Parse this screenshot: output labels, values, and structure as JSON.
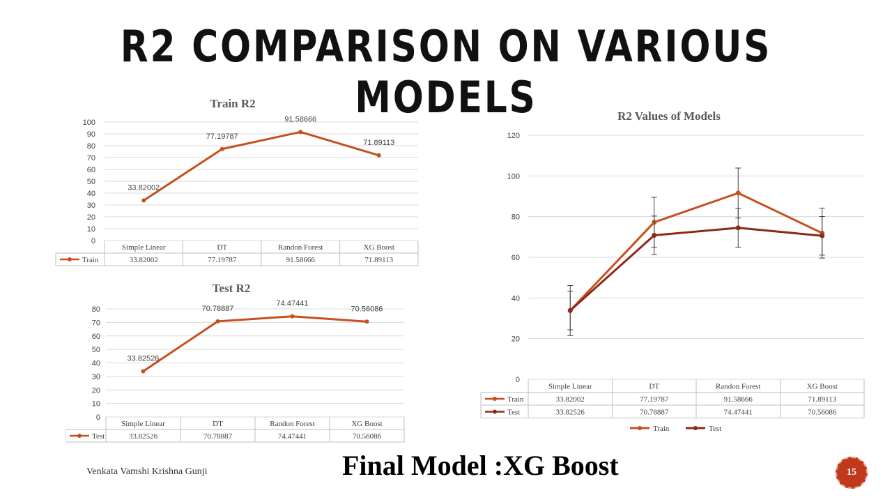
{
  "slide": {
    "title": "R2 COMPARISON ON VARIOUS MODELS",
    "author": "Venkata Vamshi Krishna Gunji",
    "final_model": "Final Model :XG Boost",
    "page_number": "15",
    "accent_color": "#c0391b"
  },
  "chart_data": [
    {
      "type": "line",
      "title": "Train R2",
      "categories": [
        "Simple Linear",
        "DT",
        "Randon Forest",
        "XG Boost"
      ],
      "series": [
        {
          "name": "Train",
          "values": [
            33.82002,
            77.19787,
            91.58666,
            71.89113
          ],
          "color": "#c5501e",
          "data_labels": [
            "33.82002",
            "77.19787",
            "91.58666",
            "71.89113"
          ]
        }
      ],
      "ylim": [
        0,
        100
      ],
      "yticks": [
        0,
        10,
        20,
        30,
        40,
        50,
        60,
        70,
        80,
        90,
        100
      ],
      "grid": true,
      "data_table": true
    },
    {
      "type": "line",
      "title": "Test R2",
      "categories": [
        "Simple Linear",
        "DT",
        "Randon Forest",
        "XG Boost"
      ],
      "series": [
        {
          "name": "Test",
          "values": [
            33.82526,
            70.78887,
            74.47441,
            70.56086
          ],
          "color": "#c5501e",
          "data_labels": [
            "33.82526",
            "70.78887",
            "74.47441",
            "70.56086"
          ]
        }
      ],
      "ylim": [
        0,
        80
      ],
      "yticks": [
        0,
        10,
        20,
        30,
        40,
        50,
        60,
        70,
        80
      ],
      "grid": true,
      "data_table": true
    },
    {
      "type": "line",
      "title": "R2 Values of Models",
      "categories": [
        "Simple Linear",
        "DT",
        "Randon Forest",
        "XG Boost"
      ],
      "series": [
        {
          "name": "Train",
          "values": [
            33.82002,
            77.19787,
            91.58666,
            71.89113
          ],
          "color": "#c5501e",
          "error": [
            12.3,
            12.3,
            12.3,
            12.3
          ]
        },
        {
          "name": "Test",
          "values": [
            33.82526,
            70.78887,
            74.47441,
            70.56086
          ],
          "color": "#8b2a1a",
          "error": [
            9.5,
            9.5,
            9.5,
            9.5
          ]
        }
      ],
      "ylim": [
        0,
        120
      ],
      "yticks": [
        0,
        20,
        40,
        60,
        80,
        100,
        120
      ],
      "grid": true,
      "data_table": true,
      "legend": "bottom",
      "error_bars": true
    }
  ]
}
